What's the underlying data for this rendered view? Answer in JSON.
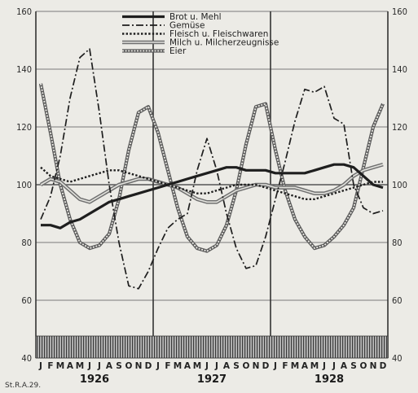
{
  "chart_data": {
    "type": "line",
    "title": "",
    "xlabel": "",
    "ylabel": "",
    "ylim": [
      40,
      160
    ],
    "yticks": [
      40,
      60,
      80,
      100,
      120,
      140,
      160
    ],
    "y_axes": [
      "left",
      "right"
    ],
    "months": [
      "J",
      "F",
      "M",
      "A",
      "M",
      "J",
      "J",
      "A",
      "S",
      "O",
      "N",
      "D"
    ],
    "years": [
      "1926",
      "1927",
      "1928"
    ],
    "grid": true,
    "legend_placement": "top-center",
    "reference_line": 100,
    "source_label": "St.R.A.29.",
    "series": [
      {
        "name": "Brot u. Mehl",
        "style": "thick-solid",
        "color": "#1e1e1e",
        "values": [
          86,
          86,
          85,
          87,
          88,
          90,
          92,
          94,
          95,
          96,
          97,
          98,
          99,
          100,
          101,
          102,
          103,
          104,
          105,
          106,
          106,
          105,
          105,
          105,
          104,
          104,
          104,
          104,
          105,
          106,
          107,
          107,
          106,
          103,
          100,
          99
        ]
      },
      {
        "name": "Gemüse",
        "style": "dash-dot",
        "color": "#1e1e1e",
        "values": [
          88,
          96,
          110,
          130,
          144,
          147,
          125,
          100,
          80,
          65,
          64,
          70,
          78,
          85,
          88,
          90,
          105,
          116,
          105,
          90,
          78,
          71,
          72,
          82,
          95,
          108,
          122,
          133,
          132,
          134,
          123,
          121,
          100,
          92,
          90,
          91
        ]
      },
      {
        "name": "Fleisch u. Fleischwaren",
        "style": "dotted",
        "color": "#1e1e1e",
        "values": [
          106,
          103,
          102,
          101,
          102,
          103,
          104,
          105,
          105,
          104,
          103,
          102,
          101,
          100,
          99,
          98,
          97,
          97,
          98,
          99,
          100,
          100,
          100,
          99,
          98,
          97,
          96,
          95,
          95,
          96,
          97,
          98,
          99,
          100,
          101,
          101
        ]
      },
      {
        "name": "Milch u. Milcherzeugnisse",
        "style": "double-line",
        "color": "#8a8a8a",
        "values": [
          100,
          102,
          101,
          98,
          95,
          94,
          96,
          98,
          100,
          101,
          102,
          102,
          101,
          100,
          99,
          97,
          95,
          94,
          94,
          96,
          98,
          99,
          100,
          100,
          99,
          99,
          99,
          98,
          97,
          97,
          98,
          100,
          103,
          105,
          106,
          107
        ]
      },
      {
        "name": "Eier",
        "style": "chain",
        "color": "#6a6a6a",
        "values": [
          135,
          118,
          100,
          88,
          80,
          78,
          79,
          83,
          95,
          112,
          125,
          127,
          118,
          105,
          92,
          82,
          78,
          77,
          79,
          86,
          98,
          114,
          127,
          128,
          112,
          98,
          88,
          82,
          78,
          79,
          82,
          86,
          92,
          106,
          120,
          128
        ]
      }
    ]
  }
}
